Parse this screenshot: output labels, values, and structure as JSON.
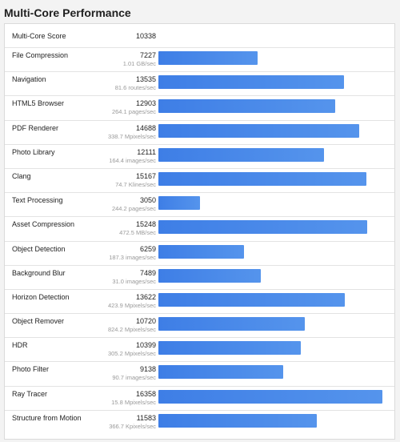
{
  "page": {
    "title": "Multi-Core Performance"
  },
  "summary": {
    "label": "Multi-Core Score",
    "score": "10338"
  },
  "bar_color": "#4a88ea",
  "max_score": 16358,
  "benchmarks": [
    {
      "name": "File Compression",
      "score": "7227",
      "rate": "1.01 GB/sec"
    },
    {
      "name": "Navigation",
      "score": "13535",
      "rate": "81.6 routes/sec"
    },
    {
      "name": "HTML5 Browser",
      "score": "12903",
      "rate": "264.1 pages/sec"
    },
    {
      "name": "PDF Renderer",
      "score": "14688",
      "rate": "338.7 Mpixels/sec"
    },
    {
      "name": "Photo Library",
      "score": "12111",
      "rate": "164.4 images/sec"
    },
    {
      "name": "Clang",
      "score": "15167",
      "rate": "74.7 Klines/sec"
    },
    {
      "name": "Text Processing",
      "score": "3050",
      "rate": "244.2 pages/sec"
    },
    {
      "name": "Asset Compression",
      "score": "15248",
      "rate": "472.5 MB/sec"
    },
    {
      "name": "Object Detection",
      "score": "6259",
      "rate": "187.3 images/sec"
    },
    {
      "name": "Background Blur",
      "score": "7489",
      "rate": "31.0 images/sec"
    },
    {
      "name": "Horizon Detection",
      "score": "13622",
      "rate": "423.9 Mpixels/sec"
    },
    {
      "name": "Object Remover",
      "score": "10720",
      "rate": "824.2 Mpixels/sec"
    },
    {
      "name": "HDR",
      "score": "10399",
      "rate": "305.2 Mpixels/sec"
    },
    {
      "name": "Photo Filter",
      "score": "9138",
      "rate": "90.7 images/sec"
    },
    {
      "name": "Ray Tracer",
      "score": "16358",
      "rate": "15.8 Mpixels/sec"
    },
    {
      "name": "Structure from Motion",
      "score": "11583",
      "rate": "366.7 Kpixels/sec"
    }
  ]
}
